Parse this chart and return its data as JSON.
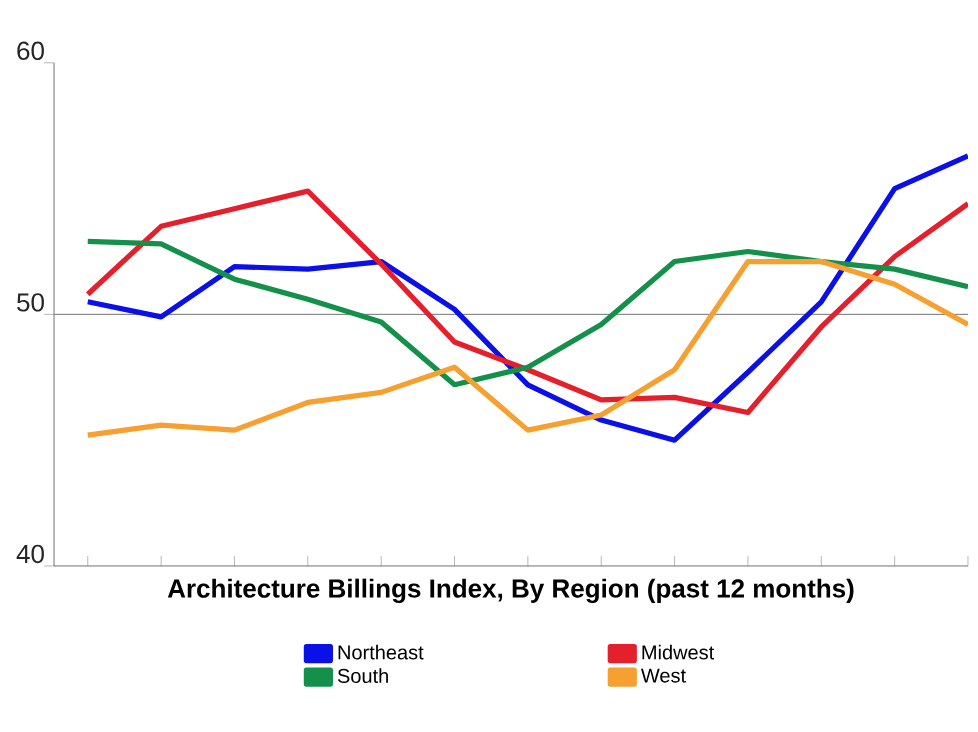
{
  "chart_data": {
    "type": "line",
    "title": "Architecture Billings Index, By Region (past 12 months)",
    "categories": [
      null,
      null,
      null,
      null,
      null,
      null,
      null,
      null,
      null,
      null,
      null,
      null,
      null
    ],
    "series": [
      {
        "name": "Northeast",
        "color": "#0a10e6",
        "values": [
          50.5,
          49.9,
          51.9,
          51.8,
          52.1,
          50.2,
          47.2,
          45.8,
          45.0,
          47.7,
          50.5,
          55.0,
          56.3
        ]
      },
      {
        "name": "Midwest",
        "color": "#e4202c",
        "values": [
          50.8,
          53.5,
          54.2,
          54.9,
          52.0,
          48.9,
          47.8,
          46.6,
          46.7,
          46.1,
          49.5,
          52.3,
          54.4
        ]
      },
      {
        "name": "South",
        "color": "#13904a",
        "values": [
          52.9,
          52.8,
          51.4,
          50.6,
          49.7,
          47.2,
          47.9,
          49.6,
          52.1,
          52.5,
          52.1,
          51.8,
          51.1
        ]
      },
      {
        "name": "West",
        "color": "#f5a030",
        "values": [
          45.2,
          45.6,
          45.4,
          46.5,
          46.9,
          47.9,
          45.4,
          46.0,
          47.8,
          52.1,
          52.1,
          51.2,
          49.6
        ]
      }
    ],
    "ylim": [
      40,
      60
    ],
    "yticks": [
      40,
      50,
      60
    ],
    "tick_labels": "y",
    "ref_lines": [
      {
        "axis": "y",
        "value": 50,
        "color": "#888888"
      }
    ],
    "legend": "bottom",
    "grid": false,
    "marker": "none",
    "line_style": "solid"
  }
}
